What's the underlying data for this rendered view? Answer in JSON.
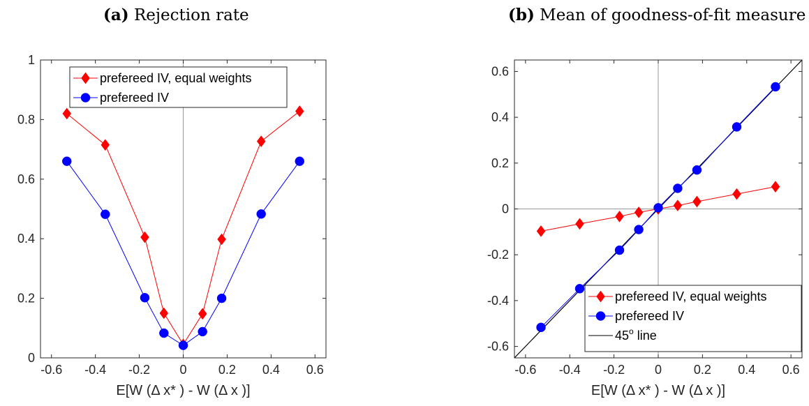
{
  "panels": {
    "a": {
      "letter": "(a)",
      "title": "Rejection rate"
    },
    "b": {
      "letter": "(b)",
      "title": "Mean of goodness-of-fit measure"
    }
  },
  "chart_data": [
    {
      "type": "line",
      "title": "Rejection rate",
      "xlabel": "E[W (Δ x* ) - W (Δ x )]",
      "ylabel": "",
      "xlim": [
        -0.65,
        0.65
      ],
      "ylim": [
        0,
        1
      ],
      "xticks": [
        -0.6,
        -0.4,
        -0.2,
        0,
        0.2,
        0.4,
        0.6
      ],
      "xtick_labels": [
        "-0.6",
        "-0.4",
        "-0.2",
        "0",
        "0.2",
        "0.4",
        "0.6"
      ],
      "yticks": [
        0,
        0.2,
        0.4,
        0.6,
        0.8,
        1
      ],
      "ytick_labels": [
        "0",
        "0.2",
        "0.4",
        "0.6",
        "0.8",
        "1"
      ],
      "reference_lines": {
        "vertical_at_x": 0
      },
      "legend_position": "top-center",
      "x": [
        -0.53,
        -0.355,
        -0.175,
        -0.088,
        0,
        0.088,
        0.175,
        0.355,
        0.53
      ],
      "series": [
        {
          "name": "prefereed IV, equal weights",
          "color": "#ff0000",
          "marker": "diamond",
          "values": [
            0.82,
            0.715,
            0.405,
            0.15,
            0.045,
            0.148,
            0.398,
            0.727,
            0.828
          ]
        },
        {
          "name": "prefereed IV",
          "color": "#0000ff",
          "marker": "circle",
          "values": [
            0.66,
            0.482,
            0.202,
            0.083,
            0.042,
            0.088,
            0.2,
            0.483,
            0.66
          ]
        }
      ]
    },
    {
      "type": "line",
      "title": "Mean of goodness-of-fit measure",
      "xlabel": "E[W (Δ x* ) - W (Δ x )]",
      "ylabel": "",
      "xlim": [
        -0.65,
        0.65
      ],
      "ylim": [
        -0.65,
        0.65
      ],
      "xticks": [
        -0.6,
        -0.4,
        -0.2,
        0,
        0.2,
        0.4,
        0.6
      ],
      "xtick_labels": [
        "-0.6",
        "-0.4",
        "-0.2",
        "0",
        "0.2",
        "0.4",
        "0.6"
      ],
      "yticks": [
        -0.6,
        -0.4,
        -0.2,
        0,
        0.2,
        0.4,
        0.6
      ],
      "ytick_labels": [
        "-0.6",
        "-0.4",
        "-0.2",
        "0",
        "0.2",
        "0.4",
        "0.6"
      ],
      "reference_lines": {
        "vertical_at_x": 0,
        "horizontal_at_y": 0
      },
      "legend_position": "bottom-right",
      "x": [
        -0.53,
        -0.355,
        -0.175,
        -0.088,
        0,
        0.088,
        0.175,
        0.355,
        0.53
      ],
      "series": [
        {
          "name": "prefereed IV, equal weights",
          "color": "#ff0000",
          "marker": "diamond",
          "values": [
            -0.097,
            -0.065,
            -0.033,
            -0.015,
            0,
            0.015,
            0.032,
            0.065,
            0.097
          ]
        },
        {
          "name": "prefereed IV",
          "color": "#0000ff",
          "marker": "circle",
          "values": [
            -0.517,
            -0.348,
            -0.18,
            -0.09,
            0.005,
            0.09,
            0.17,
            0.358,
            0.533
          ]
        },
        {
          "name": "45",
          "name_superscript": "o",
          "name_suffix": " line",
          "color": "#000000",
          "marker": "none",
          "line_type": "identity"
        }
      ]
    }
  ]
}
